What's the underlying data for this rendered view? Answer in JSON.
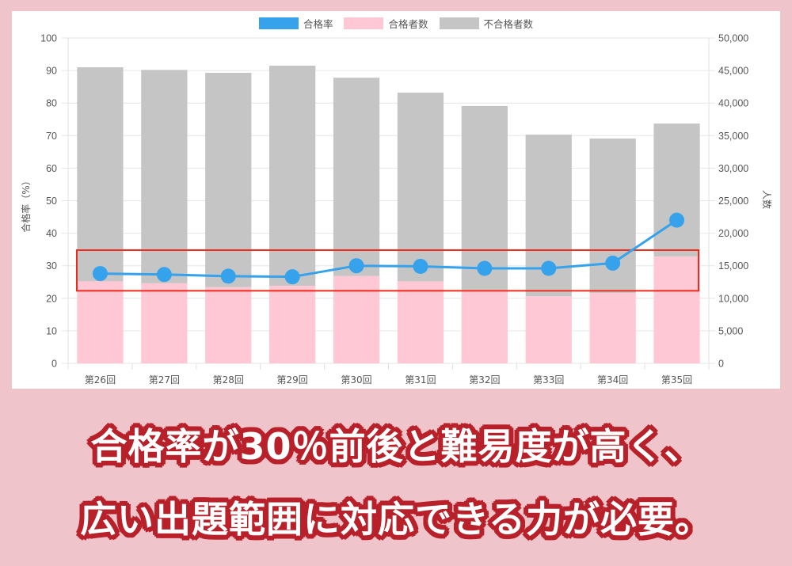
{
  "legend": {
    "items": [
      {
        "label": "合格率",
        "color": "#36a2eb"
      },
      {
        "label": "合格者数",
        "color": "#ffc8d4"
      },
      {
        "label": "不合格者数",
        "color": "#c5c5c5"
      }
    ]
  },
  "axes": {
    "left_title": "合格率（%）",
    "right_title": "人数",
    "left_ticks": [
      "0",
      "10",
      "20",
      "30",
      "40",
      "50",
      "60",
      "70",
      "80",
      "90",
      "100"
    ],
    "right_ticks": [
      "0",
      "5,000",
      "10,000",
      "15,000",
      "20,000",
      "25,000",
      "30,000",
      "35,000",
      "40,000",
      "45,000",
      "50,000"
    ]
  },
  "highlight_box": {
    "from_pct": 22.3,
    "to_pct": 34.8,
    "color": "#ee2a1a"
  },
  "caption": {
    "line1": "合格率が30％前後と難易度が高く、",
    "line2": "広い出題範囲に対応できる力が必要。"
  },
  "chart_data": {
    "type": "bar",
    "title": "",
    "categories": [
      "第26回",
      "第27回",
      "第28回",
      "第29回",
      "第30回",
      "第31回",
      "第32回",
      "第33回",
      "第34回",
      "第35回"
    ],
    "series": [
      {
        "name": "合格率",
        "type": "line",
        "axis": "left",
        "color": "#36a2eb",
        "values": [
          27.6,
          27.3,
          26.8,
          26.6,
          30.0,
          29.8,
          29.2,
          29.2,
          30.8,
          44.0
        ]
      },
      {
        "name": "合格者数",
        "type": "bar",
        "stack": "people",
        "axis": "right",
        "color": "#ffc8d4",
        "values": [
          12600,
          12300,
          11700,
          11900,
          13400,
          12600,
          11300,
          10300,
          10800,
          16400
        ]
      },
      {
        "name": "不合格者数",
        "type": "bar",
        "stack": "people",
        "axis": "right",
        "color": "#c5c5c5",
        "values": [
          32900,
          32800,
          32950,
          33850,
          30500,
          29000,
          28250,
          24850,
          23750,
          20450
        ]
      }
    ],
    "totals": [
      45500,
      45100,
      44650,
      45750,
      43900,
      41600,
      39550,
      35150,
      34550,
      36850
    ],
    "xlabel": "",
    "ylabel": "合格率（%）",
    "y2label": "人数",
    "ylim": [
      0,
      100
    ],
    "y2lim": [
      0,
      50000
    ],
    "grid": true,
    "legend_position": "top"
  }
}
